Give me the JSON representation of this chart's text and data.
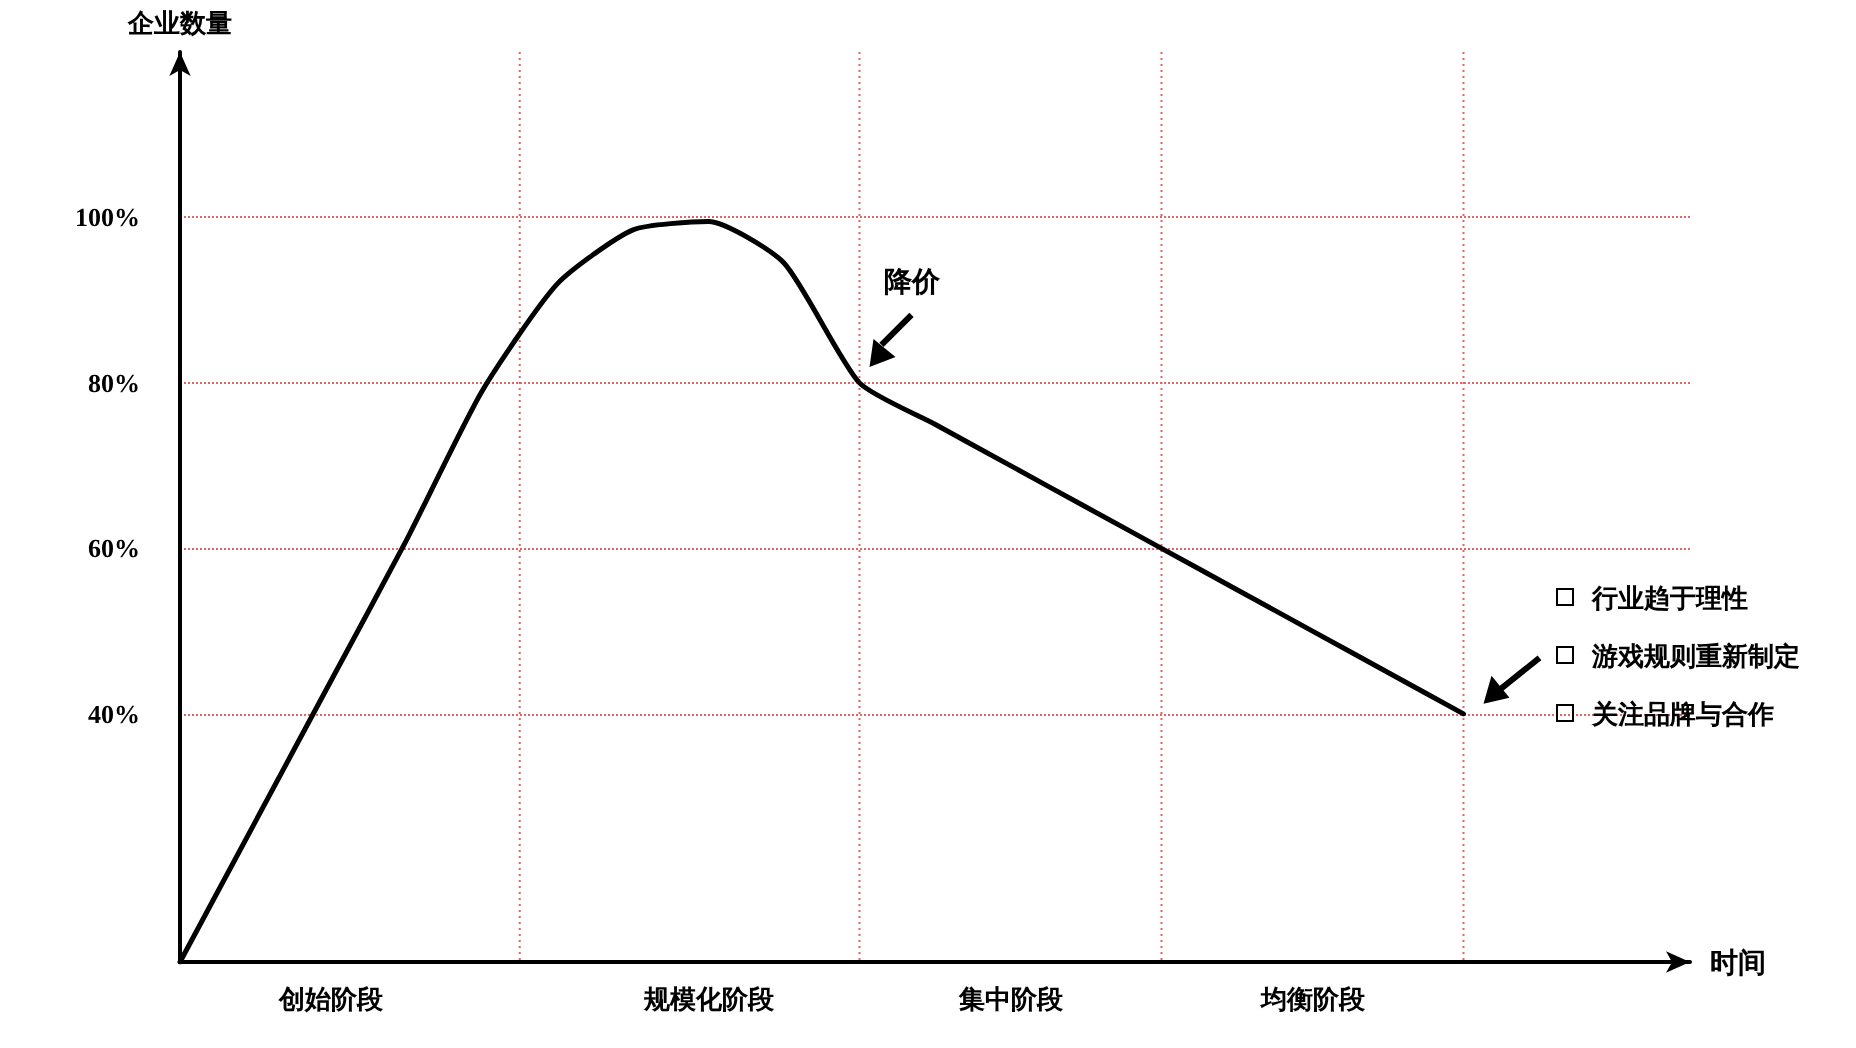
{
  "chart_data": {
    "type": "line",
    "ylabel": "企业数量",
    "xlabel": "时间",
    "categories": [
      null,
      null,
      "创始阶段",
      null,
      null,
      null,
      null,
      "规模化阶段",
      null,
      null,
      null,
      "集中阶段",
      null,
      null,
      null,
      "均衡阶段",
      null,
      null,
      null,
      null,
      null
    ],
    "series": [
      {
        "color": "#000000",
        "values": [
          10,
          27,
          44,
          61,
          79,
          92,
          98.5,
          99.5,
          94.5,
          80,
          75,
          70,
          65,
          60,
          55,
          50,
          45,
          40,
          null,
          null,
          null
        ]
      }
    ],
    "ylim": [
      10,
      120
    ],
    "yticks": [
      {
        "value": 40,
        "label": "40%"
      },
      {
        "value": 60,
        "label": "60%"
      },
      {
        "value": 80,
        "label": "80%"
      },
      {
        "value": 100,
        "label": "100%"
      }
    ],
    "grid": true,
    "marker": "none",
    "line_style": "solid",
    "annotations": [
      "降价",
      "行业趋于理性",
      "游戏规则重新制定",
      "关注品牌与合作"
    ]
  }
}
